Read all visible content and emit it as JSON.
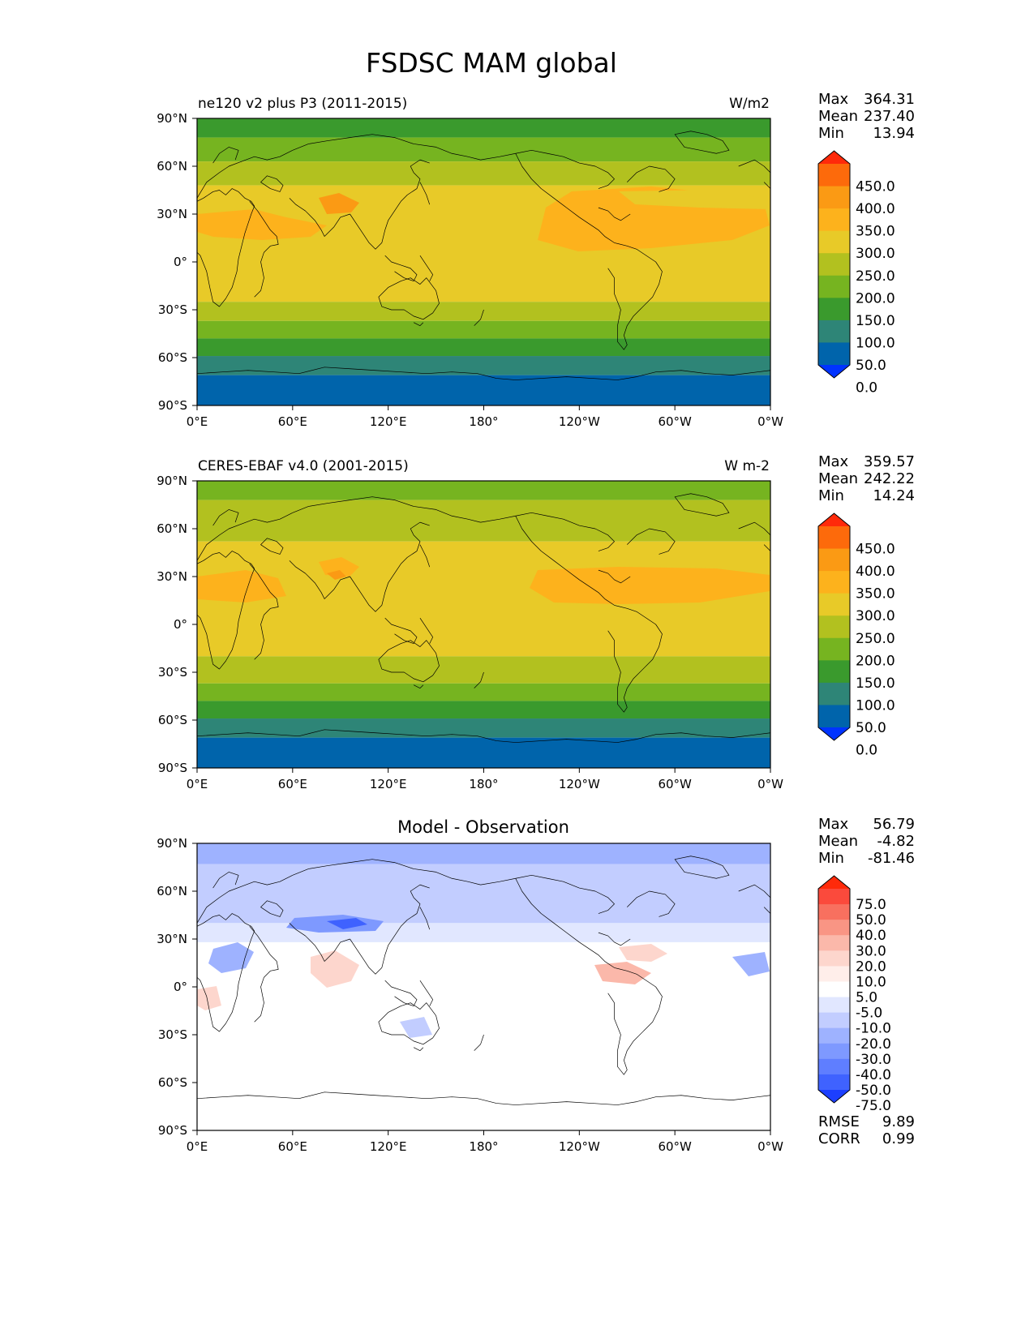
{
  "figure_title": "FSDSC MAM global",
  "axes": {
    "lat_ticks": [
      "90°N",
      "60°N",
      "30°N",
      "0°",
      "30°S",
      "60°S",
      "90°S"
    ],
    "lon_ticks": [
      "0°E",
      "60°E",
      "120°E",
      "180°",
      "120°W",
      "60°W",
      "0°W"
    ]
  },
  "chart_data": [
    {
      "type": "heatmap",
      "title": "ne120 v2 plus P3 (2011-2015)",
      "units": "W/m2",
      "stats": {
        "max_label": "Max",
        "max": "364.31",
        "mean_label": "Mean",
        "mean": "237.40",
        "min_label": "Min",
        "min": "13.94"
      },
      "colorbar": {
        "labels": [
          "450.0",
          "400.0",
          "350.0",
          "300.0",
          "250.0",
          "200.0",
          "150.0",
          "100.0",
          "50.0",
          "0.0"
        ],
        "colors": [
          "#ff2a0a",
          "#fd6a0b",
          "#fb9a14",
          "#fdb21c",
          "#e8ca28",
          "#b2c11f",
          "#76b420",
          "#3a9a2d",
          "#2e8577",
          "#0064ab",
          "#0033ff"
        ]
      },
      "zonal_bands": [
        {
          "lat": [
            90,
            78
          ],
          "value": 125
        },
        {
          "lat": [
            78,
            63
          ],
          "value": 175
        },
        {
          "lat": [
            63,
            48
          ],
          "value": 225
        },
        {
          "lat": [
            48,
            -25
          ],
          "value": 275
        },
        {
          "lat": [
            -25,
            -37
          ],
          "value": 225
        },
        {
          "lat": [
            -37,
            -48
          ],
          "value": 175
        },
        {
          "lat": [
            -48,
            -59
          ],
          "value": 125
        },
        {
          "lat": [
            -59,
            -71
          ],
          "value": 75
        },
        {
          "lat": [
            -71,
            -90
          ],
          "value": 25
        }
      ]
    },
    {
      "type": "heatmap",
      "title": "CERES-EBAF v4.0 (2001-2015)",
      "units": "W m-2",
      "stats": {
        "max_label": "Max",
        "max": "359.57",
        "mean_label": "Mean",
        "mean": "242.22",
        "min_label": "Min",
        "min": "14.24"
      },
      "colorbar": {
        "labels": [
          "450.0",
          "400.0",
          "350.0",
          "300.0",
          "250.0",
          "200.0",
          "150.0",
          "100.0",
          "50.0",
          "0.0"
        ],
        "colors": [
          "#ff2a0a",
          "#fd6a0b",
          "#fb9a14",
          "#fdb21c",
          "#e8ca28",
          "#b2c11f",
          "#76b420",
          "#3a9a2d",
          "#2e8577",
          "#0064ab",
          "#0033ff"
        ]
      },
      "zonal_bands": [
        {
          "lat": [
            90,
            78
          ],
          "value": 175
        },
        {
          "lat": [
            78,
            52
          ],
          "value": 225
        },
        {
          "lat": [
            52,
            -20
          ],
          "value": 275
        },
        {
          "lat": [
            -20,
            -37
          ],
          "value": 225
        },
        {
          "lat": [
            -37,
            -48
          ],
          "value": 175
        },
        {
          "lat": [
            -48,
            -59
          ],
          "value": 125
        },
        {
          "lat": [
            -59,
            -71
          ],
          "value": 75
        },
        {
          "lat": [
            -71,
            -90
          ],
          "value": 25
        }
      ]
    },
    {
      "type": "heatmap",
      "title": "Model - Observation",
      "units": "",
      "stats": {
        "max_label": "Max",
        "max": "56.79",
        "mean_label": "Mean",
        "mean": "-4.82",
        "min_label": "Min",
        "min": "-81.46"
      },
      "metrics": {
        "rmse_label": "RMSE",
        "rmse": "9.89",
        "corr_label": "CORR",
        "corr": "0.99"
      },
      "colorbar": {
        "labels": [
          "75.0",
          "50.0",
          "40.0",
          "30.0",
          "20.0",
          "10.0",
          "5.0",
          "-5.0",
          "-10.0",
          "-20.0",
          "-30.0",
          "-40.0",
          "-50.0",
          "-75.0"
        ],
        "colors": [
          "#ff2a0a",
          "#fb4a3c",
          "#f8705f",
          "#f99584",
          "#fbb8aa",
          "#fdd6cd",
          "#ffeeea",
          "#ffffff",
          "#e1e7ff",
          "#c2cdff",
          "#9eb2ff",
          "#7e99ff",
          "#5f7eff",
          "#3f62ff",
          "#1c3fff"
        ]
      },
      "zonal_bands": [
        {
          "lat": [
            90,
            77
          ],
          "value": -25
        },
        {
          "lat": [
            77,
            40
          ],
          "value": -15
        },
        {
          "lat": [
            40,
            28
          ],
          "value": -7
        },
        {
          "lat": [
            28,
            -90
          ],
          "value": 0
        }
      ]
    }
  ]
}
